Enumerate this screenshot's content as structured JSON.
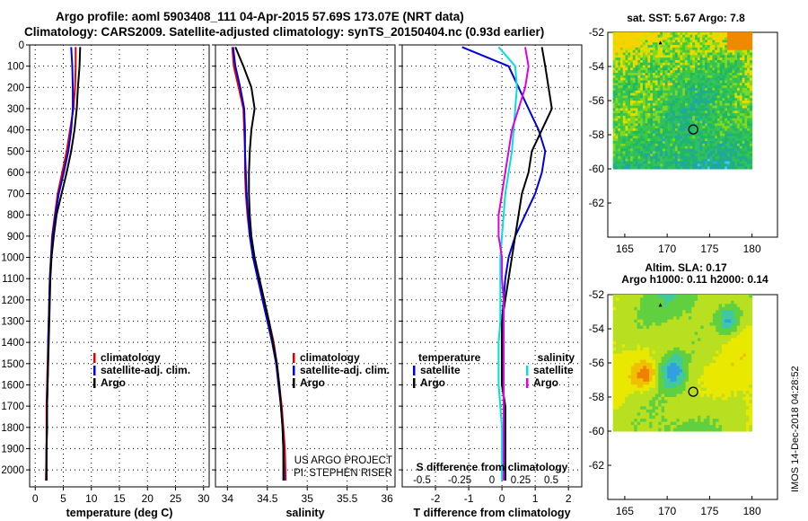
{
  "header": {
    "line1": "Argo profile: aoml 5903408_111 04-Apr-2015 57.69S 173.07E (NRT data)",
    "line2": "Climatology: CARS2009. Satellite-adjusted climatology: synTS_20150404.nc (0.93d earlier)"
  },
  "credit": "IMOS 14-Dec-2018 04:28:52",
  "colors": {
    "climatology": "#e00000",
    "satellite": "#0000dd",
    "argo": "#000000",
    "sat_salinity": "#00e0e0",
    "argo_salinity": "#e000e0"
  },
  "chart_data": [
    {
      "type": "line",
      "id": "temperature",
      "xlabel": "temperature (deg C)",
      "ylabel": "",
      "xlim": [
        -1,
        31
      ],
      "ylim": [
        2080,
        0
      ],
      "xticks": [
        0,
        5,
        10,
        15,
        20,
        25,
        30
      ],
      "yticks": [
        0,
        100,
        200,
        300,
        400,
        500,
        600,
        700,
        800,
        900,
        1000,
        1100,
        1200,
        1300,
        1400,
        1500,
        1600,
        1700,
        1800,
        1900,
        2000
      ],
      "grid": true,
      "legend": {
        "placement": "lower-center",
        "entries": [
          "climatology",
          "satellite-adj. clim.",
          "Argo"
        ]
      },
      "series": [
        {
          "name": "climatology",
          "color": "#e00000",
          "x": [
            7.2,
            7.2,
            7.1,
            6.8,
            6.2,
            5.6,
            4.8,
            4.0,
            3.5,
            3.0,
            2.8,
            2.6,
            2.5,
            2.4,
            2.3,
            2.2,
            2.1,
            2.0,
            2.0,
            2.0,
            1.9
          ],
          "y": [
            10,
            100,
            200,
            300,
            400,
            500,
            600,
            700,
            800,
            900,
            1000,
            1100,
            1200,
            1300,
            1400,
            1500,
            1600,
            1700,
            1800,
            1900,
            2050
          ]
        },
        {
          "name": "satellite-adj. clim.",
          "color": "#0000dd",
          "x": [
            6.4,
            6.6,
            6.7,
            6.7,
            6.4,
            5.9,
            5.1,
            4.2,
            3.6,
            3.1,
            2.8,
            2.6,
            2.5,
            2.4,
            2.3,
            2.3,
            2.2,
            2.1,
            2.1,
            2.0,
            2.0
          ],
          "y": [
            10,
            100,
            200,
            300,
            400,
            500,
            600,
            700,
            800,
            900,
            1000,
            1100,
            1200,
            1300,
            1400,
            1500,
            1600,
            1700,
            1800,
            1900,
            2050
          ]
        },
        {
          "name": "Argo",
          "color": "#000000",
          "x": [
            8.0,
            7.9,
            7.6,
            7.4,
            7.0,
            6.4,
            5.6,
            4.7,
            3.8,
            3.3,
            2.9,
            2.7,
            2.6,
            2.5,
            2.4,
            2.3,
            2.2,
            2.1,
            2.1,
            2.0,
            2.0
          ],
          "y": [
            10,
            100,
            200,
            300,
            400,
            500,
            600,
            700,
            800,
            900,
            1000,
            1100,
            1200,
            1300,
            1400,
            1500,
            1600,
            1700,
            1800,
            1900,
            2050
          ]
        }
      ]
    },
    {
      "type": "line",
      "id": "salinity",
      "xlabel": "salinity",
      "ylabel": "",
      "xlim": [
        33.85,
        36.1
      ],
      "ylim": [
        2080,
        0
      ],
      "xticks": [
        34,
        34.5,
        35,
        35.5,
        36
      ],
      "grid": true,
      "annotation": [
        "US ARGO PROJECT",
        "PI: STEPHEN RISER"
      ],
      "legend": {
        "placement": "lower-center",
        "entries": [
          "climatology",
          "satellite-adj. clim.",
          "Argo"
        ]
      },
      "series": [
        {
          "name": "climatology",
          "color": "#e00000",
          "x": [
            34.06,
            34.08,
            34.14,
            34.2,
            34.21,
            34.22,
            34.22,
            34.23,
            34.25,
            34.28,
            34.33,
            34.4,
            34.46,
            34.52,
            34.58,
            34.62,
            34.65,
            34.68,
            34.7,
            34.72,
            34.73
          ],
          "y": [
            10,
            100,
            200,
            300,
            400,
            500,
            600,
            700,
            800,
            900,
            1000,
            1100,
            1200,
            1300,
            1400,
            1500,
            1600,
            1700,
            1800,
            1900,
            2050
          ]
        },
        {
          "name": "satellite-adj. clim.",
          "color": "#0000dd",
          "x": [
            34.07,
            34.1,
            34.16,
            34.21,
            34.22,
            34.22,
            34.23,
            34.24,
            34.26,
            34.28,
            34.32,
            34.38,
            34.44,
            34.5,
            34.56,
            34.61,
            34.64,
            34.67,
            34.69,
            34.7,
            34.71
          ],
          "y": [
            10,
            100,
            200,
            300,
            400,
            500,
            600,
            700,
            800,
            900,
            1000,
            1100,
            1200,
            1300,
            1400,
            1500,
            1600,
            1700,
            1800,
            1900,
            2050
          ]
        },
        {
          "name": "Argo",
          "color": "#000000",
          "x": [
            34.1,
            34.2,
            34.3,
            34.34,
            34.3,
            34.28,
            34.27,
            34.27,
            34.28,
            34.3,
            34.34,
            34.4,
            34.46,
            34.52,
            34.57,
            34.62,
            34.65,
            34.67,
            34.69,
            34.7,
            34.7
          ],
          "y": [
            10,
            100,
            200,
            300,
            400,
            500,
            600,
            700,
            800,
            900,
            1000,
            1100,
            1200,
            1300,
            1400,
            1500,
            1600,
            1700,
            1800,
            1900,
            2050
          ]
        }
      ]
    },
    {
      "type": "line",
      "id": "difference",
      "xlabel": "T difference from climatology",
      "xlabel_top": "S difference from climatology",
      "xlim": [
        -3,
        2.4
      ],
      "ylim": [
        2080,
        0
      ],
      "xticks": [
        -2,
        -1,
        0,
        1,
        2
      ],
      "xticklabels": [
        "-2",
        "-1",
        "0",
        "1",
        "2"
      ],
      "sticks": [
        "-0.5",
        "-0.25",
        "0",
        "0.25",
        "0.5"
      ],
      "grid": true,
      "legend_left": {
        "title": "temperature",
        "entries": [
          "satellite",
          "Argo"
        ]
      },
      "legend_right": {
        "title": "salinity",
        "entries": [
          "satellite",
          "Argo"
        ]
      },
      "series": [
        {
          "name": "temperature satellite",
          "color": "#0000dd",
          "x": [
            -1.2,
            0.2,
            0.5,
            0.8,
            1.1,
            1.3,
            1.2,
            1.0,
            0.7,
            0.4,
            0.2,
            0.1,
            0.05,
            0.0,
            0.0,
            0.0,
            0.0,
            0.1,
            0.1,
            0.1,
            0.1
          ],
          "y": [
            10,
            100,
            200,
            300,
            400,
            500,
            600,
            700,
            800,
            900,
            1000,
            1100,
            1200,
            1300,
            1400,
            1500,
            1600,
            1700,
            1800,
            1900,
            2050
          ]
        },
        {
          "name": "temperature Argo",
          "color": "#000000",
          "x": [
            1.2,
            1.3,
            1.4,
            1.5,
            1.2,
            0.9,
            0.8,
            0.6,
            0.5,
            0.4,
            0.3,
            0.2,
            0.1,
            0.0,
            0.0,
            0.0,
            0.0,
            0.1,
            0.1,
            0.1,
            0.1
          ],
          "y": [
            10,
            100,
            200,
            300,
            400,
            500,
            600,
            700,
            800,
            900,
            1000,
            1100,
            1200,
            1300,
            1400,
            1500,
            1600,
            1700,
            1800,
            1900,
            2050
          ]
        },
        {
          "name": "salinity satellite",
          "color": "#00e0e0",
          "x": [
            -0.1,
            0.4,
            0.45,
            0.4,
            0.35,
            0.3,
            0.2,
            0.1,
            0.05,
            0.0,
            -0.05,
            -0.05,
            -0.05,
            -0.05,
            -0.1,
            -0.1,
            -0.1,
            -0.05,
            0.0,
            0.0,
            0.0
          ],
          "y": [
            10,
            100,
            200,
            300,
            400,
            500,
            600,
            700,
            800,
            900,
            1000,
            1100,
            1200,
            1300,
            1400,
            1500,
            1600,
            1700,
            1800,
            1900,
            2050
          ]
        },
        {
          "name": "salinity Argo",
          "color": "#e000e0",
          "x": [
            0.7,
            0.8,
            0.7,
            0.5,
            0.3,
            0.2,
            0.1,
            0.0,
            -0.1,
            -0.1,
            0.0,
            0.0,
            0.05,
            0.05,
            0.05,
            0.05,
            0.05,
            0.05,
            0.05,
            0.05,
            0.05
          ],
          "y": [
            10,
            100,
            200,
            300,
            400,
            500,
            600,
            700,
            800,
            900,
            1000,
            1100,
            1200,
            1300,
            1400,
            1500,
            1600,
            1700,
            1800,
            1900,
            2050
          ]
        }
      ]
    },
    {
      "type": "heatmap",
      "id": "sst",
      "title": "sat. SST: 5.67 Argo: 7.8",
      "xlim": [
        163,
        183
      ],
      "ylim": [
        -64,
        -52
      ],
      "xticks": [
        165,
        170,
        175,
        180
      ],
      "yticks": [
        -52,
        -54,
        -56,
        -58,
        -60,
        -62
      ],
      "profile_location": {
        "lon": 173.07,
        "lat": -57.69
      }
    },
    {
      "type": "heatmap",
      "id": "sla",
      "title": "Altim. SLA: 0.17",
      "subtitle": "Argo h1000: 0.11 h2000: 0.14",
      "xlim": [
        163,
        183
      ],
      "ylim": [
        -64,
        -52
      ],
      "xticks": [
        165,
        170,
        175,
        180
      ],
      "yticks": [
        -52,
        -54,
        -56,
        -58,
        -60,
        -62
      ],
      "profile_location": {
        "lon": 173.07,
        "lat": -57.69
      }
    }
  ]
}
